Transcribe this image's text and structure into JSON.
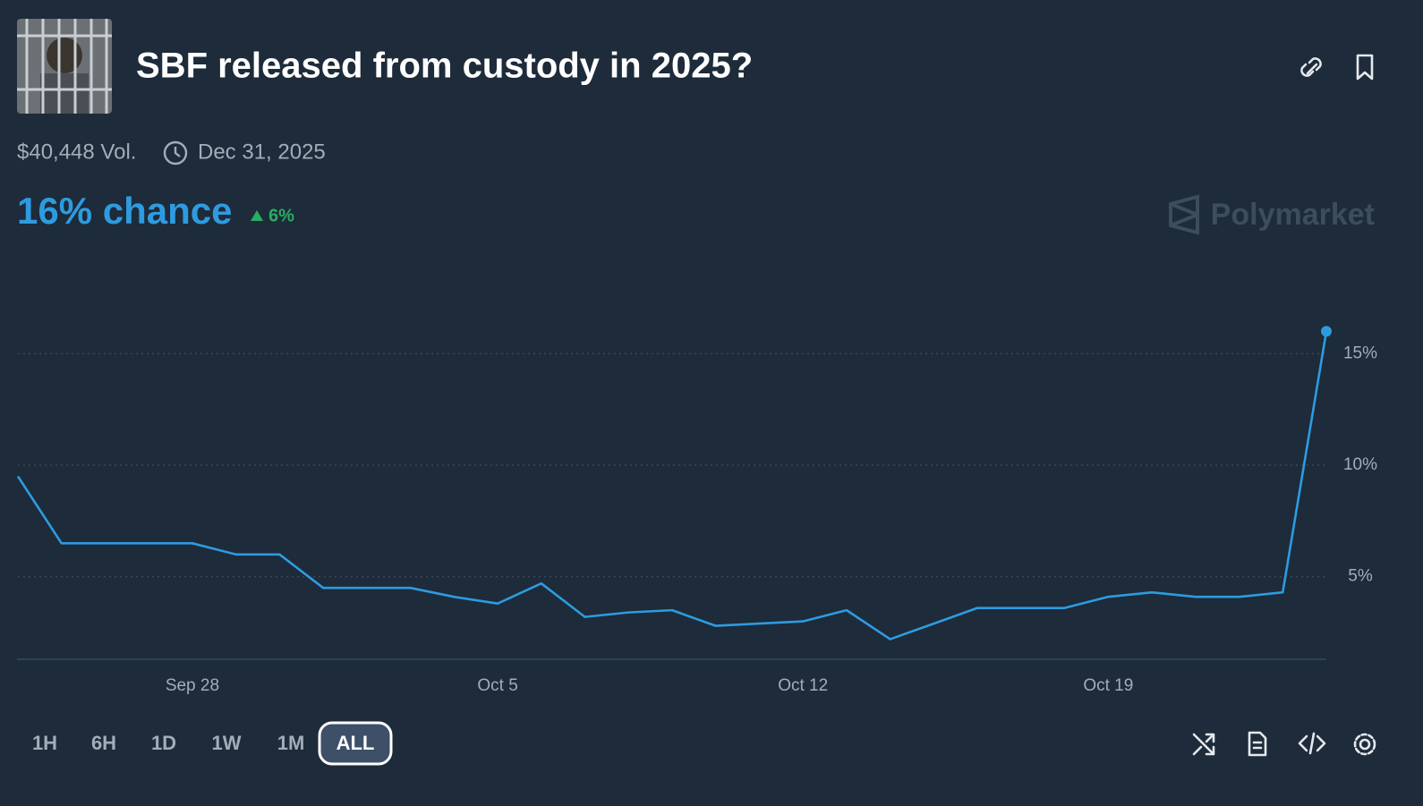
{
  "header": {
    "title": "SBF released from custody in 2025?",
    "volume": "$40,448 Vol.",
    "end_date": "Dec 31, 2025",
    "chance": "16% chance",
    "change": "6%",
    "brand": "Polymarket"
  },
  "chart_data": {
    "type": "line",
    "x": [
      "Sep 24",
      "Sep 25",
      "Sep 26",
      "Sep 27",
      "Sep 28",
      "Sep 29",
      "Sep 30",
      "Oct 1",
      "Oct 2",
      "Oct 3",
      "Oct 4",
      "Oct 5",
      "Oct 6",
      "Oct 7",
      "Oct 8",
      "Oct 9",
      "Oct 10",
      "Oct 11",
      "Oct 12",
      "Oct 13",
      "Oct 14",
      "Oct 15",
      "Oct 16",
      "Oct 17",
      "Oct 18",
      "Oct 19",
      "Oct 20",
      "Oct 21",
      "Oct 22",
      "Oct 23",
      "Oct 24"
    ],
    "series": [
      {
        "color": "#2e9be0",
        "values": [
          9.5,
          6.5,
          6.5,
          6.5,
          6.5,
          6.0,
          6.0,
          4.5,
          4.5,
          4.5,
          4.1,
          3.8,
          4.7,
          3.2,
          3.4,
          3.5,
          2.8,
          2.9,
          3.0,
          3.5,
          2.2,
          2.9,
          3.6,
          3.6,
          3.6,
          4.1,
          4.3,
          4.1,
          4.1,
          4.3,
          16
        ]
      }
    ],
    "ylim": [
      1.3,
      17.5
    ],
    "yticks": [
      {
        "value": 5,
        "label": "5%"
      },
      {
        "value": 10,
        "label": "10%"
      },
      {
        "value": 15,
        "label": "15%"
      }
    ],
    "xticks": [
      "Sep 28",
      "Oct 5",
      "Oct 12",
      "Oct 19"
    ],
    "grid": true
  },
  "controls": {
    "ranges": [
      "1H",
      "6H",
      "1D",
      "1W",
      "1M",
      "ALL"
    ],
    "selected": "ALL"
  }
}
